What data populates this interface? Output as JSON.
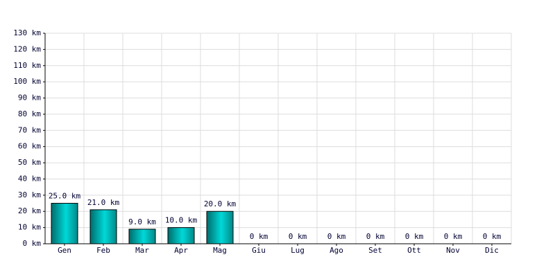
{
  "chart_data": {
    "type": "bar",
    "categories": [
      "Gen",
      "Feb",
      "Mar",
      "Apr",
      "Mag",
      "Giu",
      "Lug",
      "Ago",
      "Set",
      "Ott",
      "Nov",
      "Dic"
    ],
    "values": [
      25,
      21,
      9,
      10,
      20,
      0,
      0,
      0,
      0,
      0,
      0,
      0
    ],
    "value_labels": [
      "25.0 km",
      "21.0 km",
      "9.0 km",
      "10.0 km",
      "20.0 km",
      "0 km",
      "0 km",
      "0 km",
      "0 km",
      "0 km",
      "0 km",
      "0 km"
    ],
    "color": "#00d8d8",
    "ylim": [
      0,
      130
    ],
    "yticks": [
      {
        "value": 0,
        "label": "0 km"
      },
      {
        "value": 10,
        "label": "10 km"
      },
      {
        "value": 20,
        "label": "20 km"
      },
      {
        "value": 30,
        "label": "30 km"
      },
      {
        "value": 40,
        "label": "40 km"
      },
      {
        "value": 50,
        "label": "50 km"
      },
      {
        "value": 60,
        "label": "60 km"
      },
      {
        "value": 70,
        "label": "70 km"
      },
      {
        "value": 80,
        "label": "80 km"
      },
      {
        "value": 90,
        "label": "90 km"
      },
      {
        "value": 100,
        "label": "100 km"
      },
      {
        "value": 110,
        "label": "110 km"
      },
      {
        "value": 120,
        "label": "120 km"
      },
      {
        "value": 130,
        "label": "130 km"
      }
    ],
    "grid": true
  }
}
